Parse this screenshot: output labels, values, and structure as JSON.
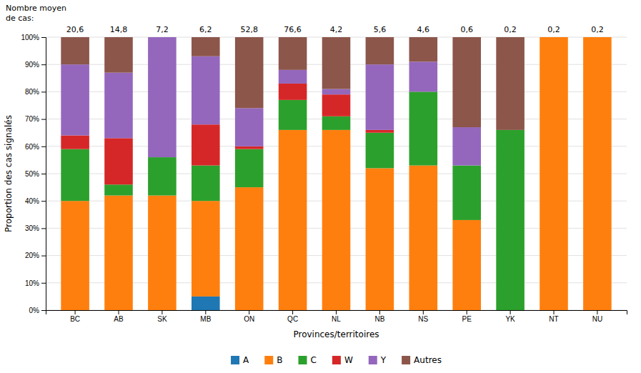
{
  "chart_data": {
    "type": "bar",
    "stacked": true,
    "title": "Nombre moyen",
    "subtitle": "de cas:",
    "x_label": "Provinces/territoires",
    "y_label": "Proportion des cas signalés",
    "categories": [
      "BC",
      "AB",
      "SK",
      "MB",
      "ON",
      "QC",
      "NL",
      "NB",
      "NS",
      "PE",
      "YK",
      "NT",
      "NU"
    ],
    "annotations": [
      "20,6",
      "14,8",
      "7,2",
      "6,2",
      "52,8",
      "76,6",
      "4,2",
      "5,6",
      "4,6",
      "0,6",
      "0,2",
      "0,2",
      "0,2"
    ],
    "series": [
      {
        "name": "A",
        "values": [
          0,
          0,
          0,
          5,
          0,
          0,
          0,
          0,
          0,
          0,
          0,
          0,
          0
        ]
      },
      {
        "name": "B",
        "values": [
          40,
          42,
          42,
          35,
          45,
          66,
          66,
          52,
          53,
          33,
          0,
          100,
          100
        ]
      },
      {
        "name": "C",
        "values": [
          19,
          4,
          14,
          13,
          14,
          11,
          5,
          13,
          27,
          20,
          66,
          0,
          0
        ]
      },
      {
        "name": "W",
        "values": [
          5,
          17,
          0,
          15,
          1,
          6,
          8,
          1,
          0,
          0,
          0,
          0,
          0
        ]
      },
      {
        "name": "Y",
        "values": [
          26,
          24,
          44,
          25,
          14,
          5,
          2,
          24,
          11,
          14,
          0,
          0,
          0
        ]
      },
      {
        "name": "Autres",
        "values": [
          10,
          13,
          0,
          7,
          26,
          12,
          19,
          10,
          9,
          33,
          34,
          0,
          0
        ]
      }
    ],
    "ylim": [
      0,
      100
    ],
    "yticks": [
      {
        "value": 0,
        "label": "0%"
      },
      {
        "value": 10,
        "label": "10%"
      },
      {
        "value": 20,
        "label": "20%"
      },
      {
        "value": 30,
        "label": "30%"
      },
      {
        "value": 40,
        "label": "40%"
      },
      {
        "value": 50,
        "label": "50%"
      },
      {
        "value": 60,
        "label": "60%"
      },
      {
        "value": 70,
        "label": "70%"
      },
      {
        "value": 80,
        "label": "80%"
      },
      {
        "value": 90,
        "label": "90%"
      },
      {
        "value": 100,
        "label": "100%"
      }
    ],
    "grid": true,
    "legend": "bottom"
  }
}
